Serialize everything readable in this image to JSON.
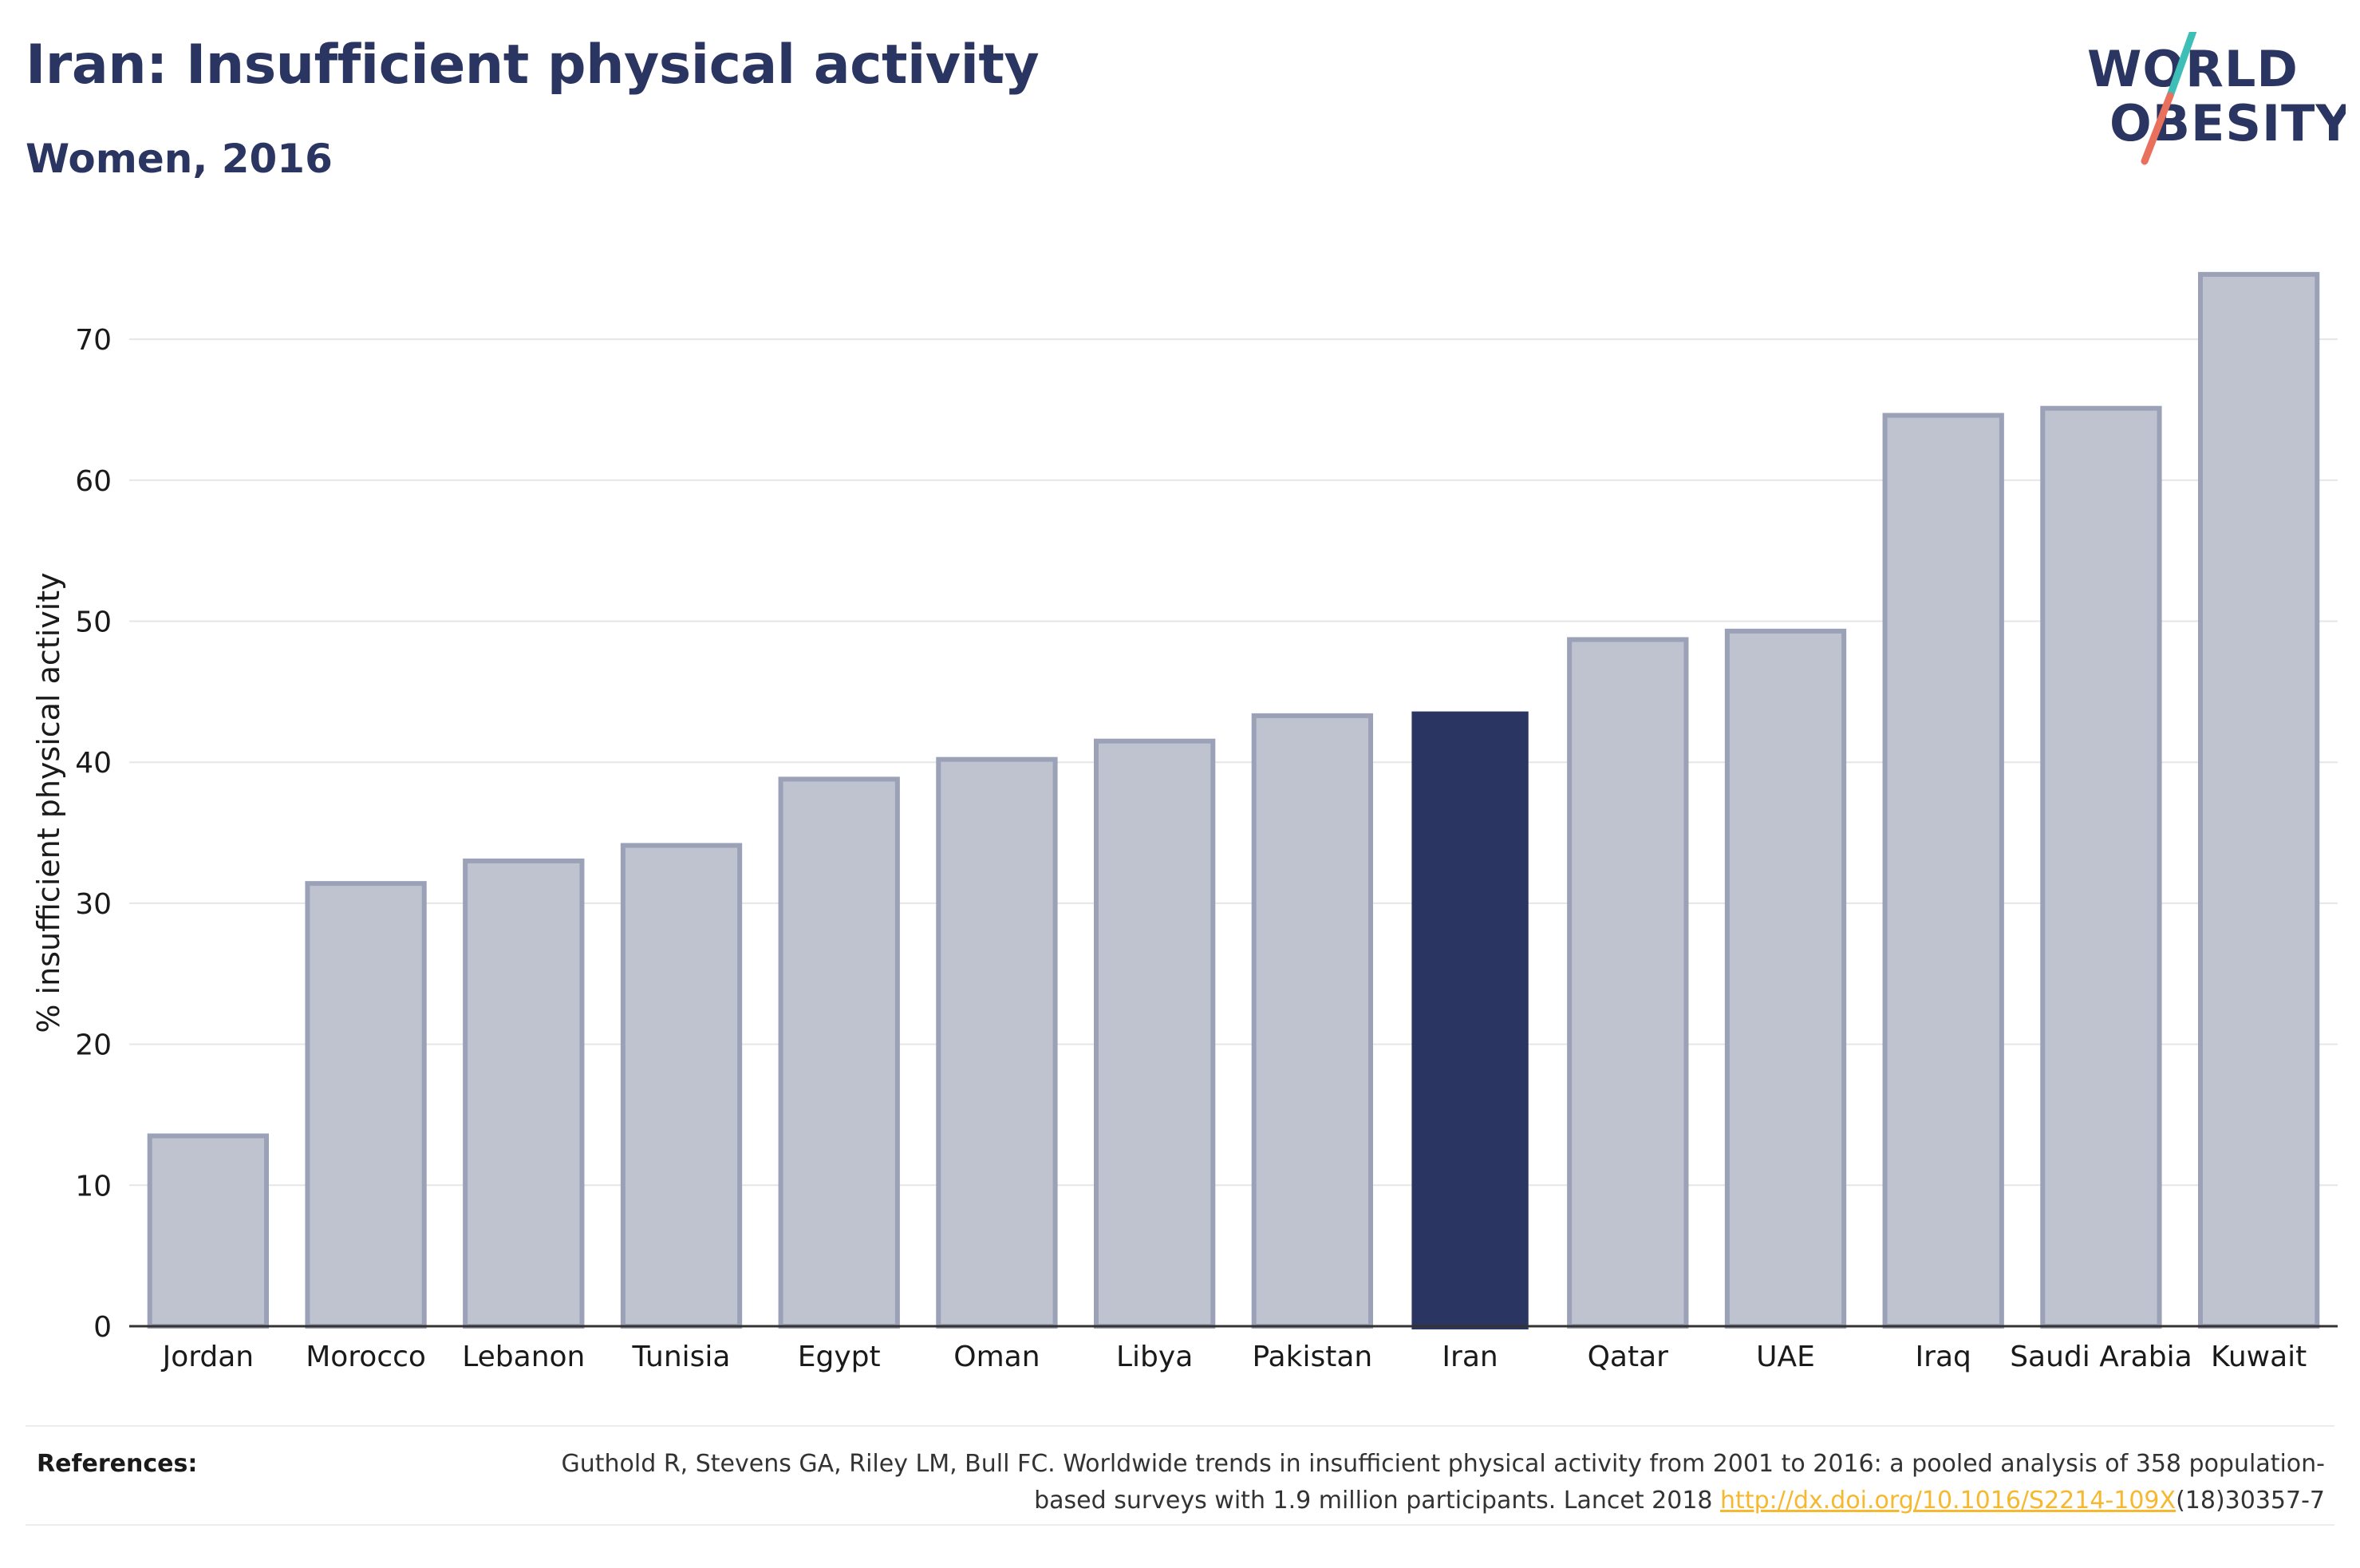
{
  "header": {
    "title": "Iran: Insufficient physical activity",
    "subtitle": "Women, 2016"
  },
  "logo": {
    "line1": "WORLD",
    "line2": "OBESITY",
    "accent_teal": "#3dbfb8",
    "accent_coral": "#e8705c"
  },
  "colors": {
    "bar": "#bfc3cf",
    "bar_border": "#9ba1b6",
    "highlight": "#2a3561",
    "text": "#2a3561"
  },
  "chart_data": {
    "type": "bar",
    "title": "Iran: Insufficient physical activity",
    "subtitle": "Women, 2016",
    "xlabel": "",
    "ylabel": "% insufficient physical activity",
    "categories": [
      "Jordan",
      "Morocco",
      "Lebanon",
      "Tunisia",
      "Egypt",
      "Oman",
      "Libya",
      "Pakistan",
      "Iran",
      "Qatar",
      "UAE",
      "Iraq",
      "Saudi Arabia",
      "Kuwait"
    ],
    "values": [
      13.5,
      31.4,
      33.0,
      34.1,
      38.8,
      40.2,
      41.5,
      43.3,
      43.6,
      48.7,
      49.3,
      64.6,
      65.1,
      74.6
    ],
    "highlight": "Iran",
    "ylim": [
      0,
      75
    ],
    "yticks": [
      0,
      10,
      20,
      30,
      40,
      50,
      60,
      70
    ],
    "grid": true,
    "legend": "none"
  },
  "references": {
    "label": "References:",
    "text": "Guthold R, Stevens GA, Riley LM, Bull FC. Worldwide trends in insufficient physical activity from 2001 to 2016: a pooled analysis of 358 population-based surveys with 1.9 million participants. Lancet 2018 ",
    "link": "http://dx.doi.org/10.1016/S2214-109X",
    "suffix": "(18)30357-7"
  }
}
